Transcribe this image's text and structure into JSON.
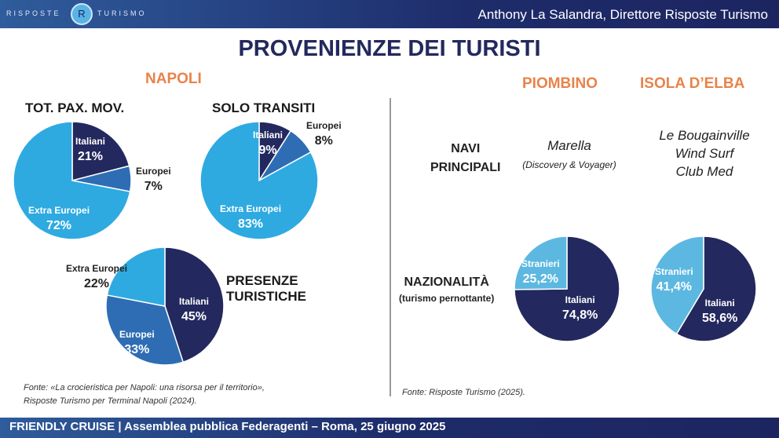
{
  "header": {
    "logo_left": "RISPOSTE",
    "logo_right": "TURISMO",
    "logo_mark": "R",
    "speaker": "Anthony La Salandra, Direttore Risposte Turismo"
  },
  "title": "PROVENIENZE DEI TURISTI",
  "napoli": {
    "heading": "NAPOLI",
    "tot_title": "TOT. PAX. MOV.",
    "transiti_title": "SOLO TRANSITI",
    "presenze_title_1": "PRESENZE",
    "presenze_title_2": "TURISTICHE",
    "source_1": "Fonte: «La crocieristica per Napoli: una risorsa per il territorio»,",
    "source_2": "Risposte Turismo per Terminal Napoli (2024)."
  },
  "right": {
    "piombino": "PIOMBINO",
    "elba": "ISOLA D’ELBA",
    "navi_1": "NAVI",
    "navi_2": "PRINCIPALI",
    "naz_1": "NAZIONALITÀ",
    "naz_2": "(turismo pernottante)",
    "piombino_ship": "Marella",
    "piombino_ship_sub": "(Discovery & Voyager)",
    "elba_ships": [
      "Le Bougainville",
      "Wind Surf",
      "Club Med"
    ],
    "source": "Fonte: Risposte Turismo (2025)."
  },
  "colors": {
    "navy": "#23295e",
    "mid": "#2e6db4",
    "cyan": "#2eaae1",
    "light": "#5cb8e0"
  },
  "chart_data": [
    {
      "type": "pie",
      "title": "TOT. PAX. MOV.",
      "labels": [
        "Italiani",
        "Europei",
        "Extra Europei"
      ],
      "values": [
        21,
        7,
        72
      ],
      "display": [
        "21%",
        "7%",
        "72%"
      ]
    },
    {
      "type": "pie",
      "title": "SOLO TRANSITI",
      "labels": [
        "Italiani",
        "Europei",
        "Extra Europei"
      ],
      "values": [
        9,
        8,
        83
      ],
      "display": [
        "9%",
        "8%",
        "83%"
      ]
    },
    {
      "type": "pie",
      "title": "PRESENZE TURISTICHE",
      "labels": [
        "Italiani",
        "Europei",
        "Extra Europei"
      ],
      "values": [
        45,
        33,
        22
      ],
      "display": [
        "45%",
        "33%",
        "22%"
      ]
    },
    {
      "type": "pie",
      "title": "PIOMBINO",
      "labels": [
        "Italiani",
        "Stranieri"
      ],
      "values": [
        74.8,
        25.2
      ],
      "display": [
        "74,8%",
        "25,2%"
      ]
    },
    {
      "type": "pie",
      "title": "ISOLA D’ELBA",
      "labels": [
        "Italiani",
        "Stranieri"
      ],
      "values": [
        58.6,
        41.4
      ],
      "display": [
        "58,6%",
        "41,4%"
      ]
    }
  ],
  "footer": "FRIENDLY CRUISE | Assemblea pubblica Federagenti – Roma, 25 giugno 2025"
}
